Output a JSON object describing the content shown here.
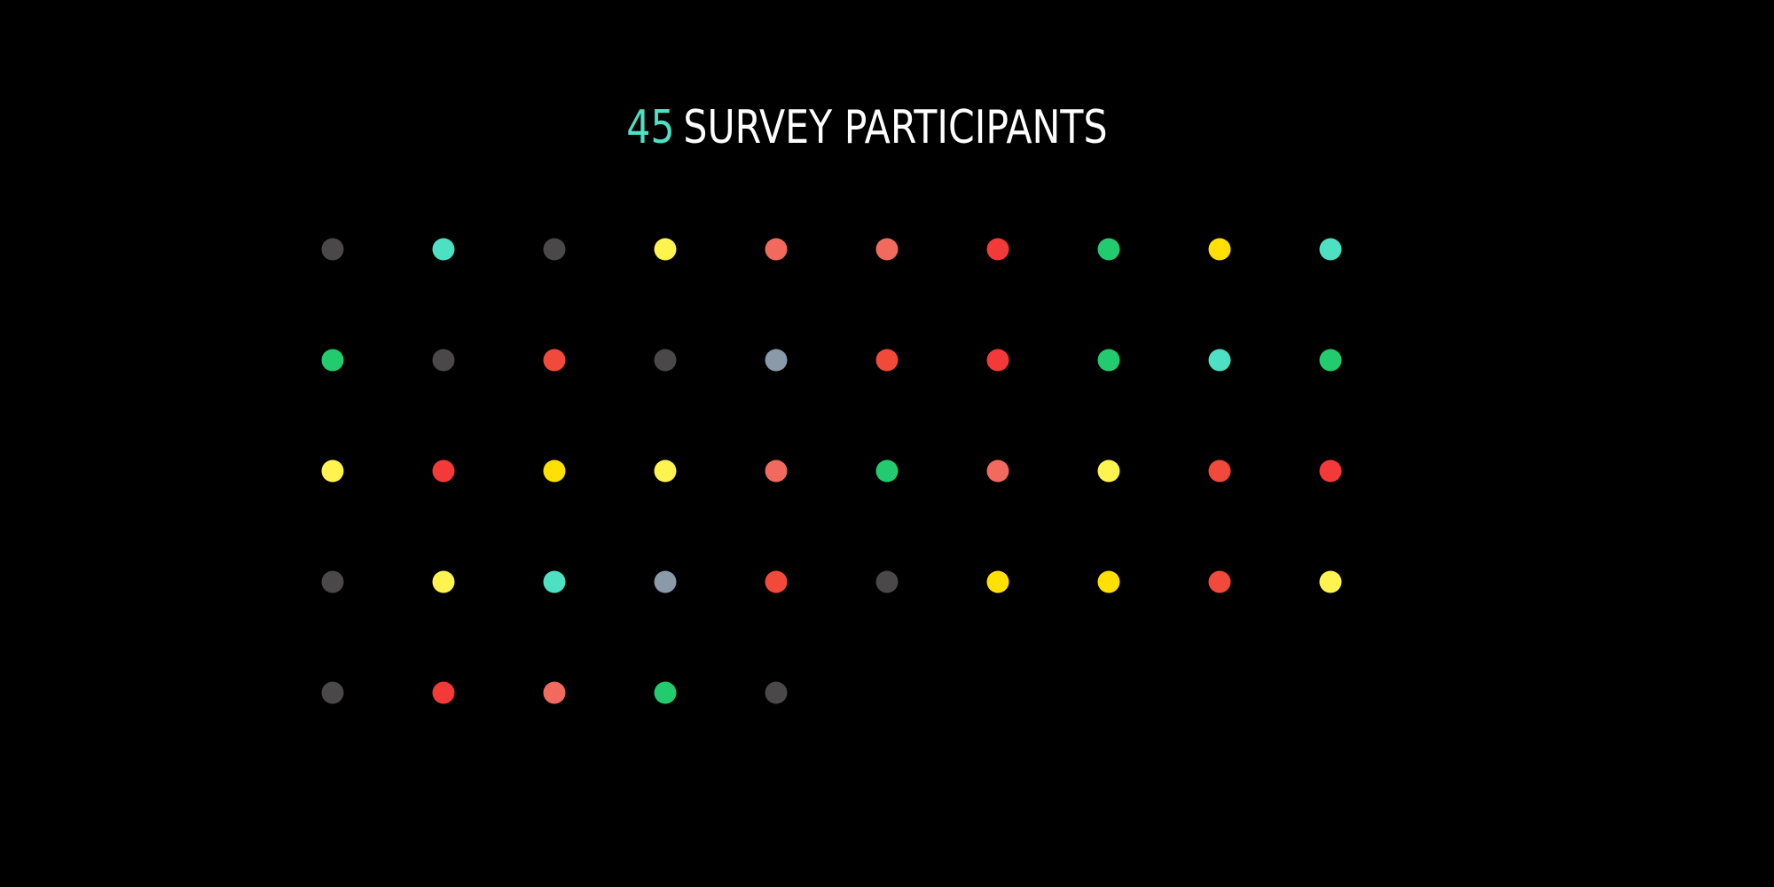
{
  "title": {
    "count": "45",
    "text": "SURVEY PARTICIPANTS"
  },
  "colors": {
    "background": "#000000",
    "count_accent": "#4ee0c2",
    "title_text": "#ffffff",
    "dark_gray": "#4a4848",
    "teal": "#4ee0c2",
    "light_yellow": "#fff44f",
    "gold": "#ffe000",
    "salmon": "#f26a5e",
    "red": "#f43a38",
    "red_orange": "#f24a3a",
    "green": "#22cc6e",
    "slate": "#8a9aa8"
  },
  "chart_data": {
    "type": "dot-matrix",
    "total": 45,
    "columns": 10,
    "rows": 5,
    "dots": [
      "#4a4848",
      "#4ee0c2",
      "#4a4848",
      "#fff44f",
      "#f26a5e",
      "#f26a5e",
      "#f43a38",
      "#22cc6e",
      "#ffe000",
      "#4ee0c2",
      "#22cc6e",
      "#4a4848",
      "#f24a3a",
      "#4a4848",
      "#8a9aa8",
      "#f24a3a",
      "#f43a38",
      "#22cc6e",
      "#4ee0c2",
      "#22cc6e",
      "#fff44f",
      "#f43a38",
      "#ffe000",
      "#fff44f",
      "#f26a5e",
      "#22cc6e",
      "#f26a5e",
      "#fff44f",
      "#f24a3a",
      "#f43a38",
      "#4a4848",
      "#fff44f",
      "#4ee0c2",
      "#8a9aa8",
      "#f24a3a",
      "#4a4848",
      "#ffe000",
      "#ffe000",
      "#f24a3a",
      "#fff44f",
      "#4a4848",
      "#f43a38",
      "#f26a5e",
      "#22cc6e",
      "#4a4848"
    ]
  }
}
